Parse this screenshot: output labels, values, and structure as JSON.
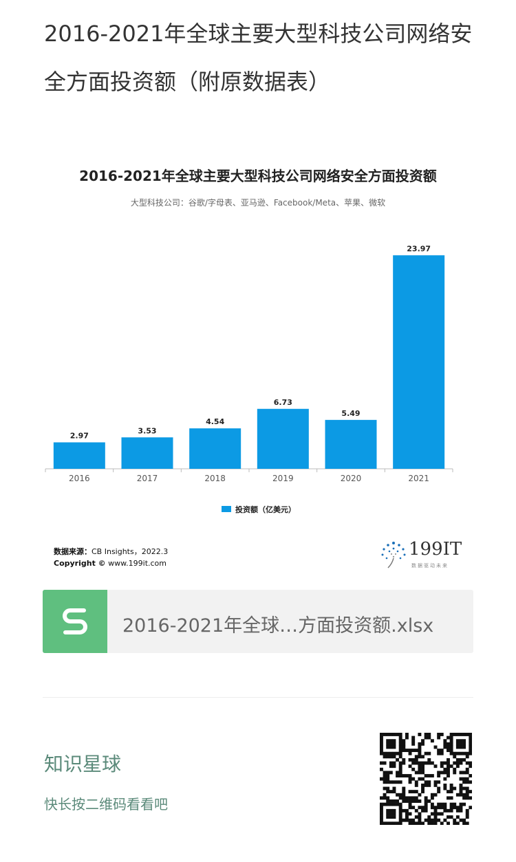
{
  "post": {
    "title": "2016-2021年全球主要大型科技公司网络安全方面投资额（附原数据表）"
  },
  "chart": {
    "source_label": "数据来源：",
    "source_value": "CB Insights，2022.3",
    "copyright_label": "Copyright ©",
    "copyright_value": "www.199it.com",
    "logo_text": "199IT",
    "logo_tagline": "数据驱动未来"
  },
  "chart_data": {
    "type": "bar",
    "title": "2016-2021年全球主要大型科技公司网络安全方面投资额",
    "subtitle": "大型科技公司：谷歌/字母表、亚马逊、Facebook/Meta、苹果、微软",
    "categories": [
      "2016",
      "2017",
      "2018",
      "2019",
      "2020",
      "2021"
    ],
    "series": [
      {
        "name": "投资额（亿美元）",
        "values": [
          2.97,
          3.53,
          4.54,
          6.73,
          5.49,
          23.97
        ]
      }
    ],
    "ylim": [
      0,
      25
    ],
    "grid": false,
    "legend": "bottom-center",
    "bar_color": "#0c9ae4"
  },
  "attachment": {
    "icon": "spreadsheet-s-icon",
    "filename": "2016-2021年全球…方面投资额.xlsx",
    "icon_color": "#5fbf7f"
  },
  "footer": {
    "title": "知识星球",
    "hint": "快长按二维码看看吧",
    "qr_icon": "qr-code-icon"
  }
}
